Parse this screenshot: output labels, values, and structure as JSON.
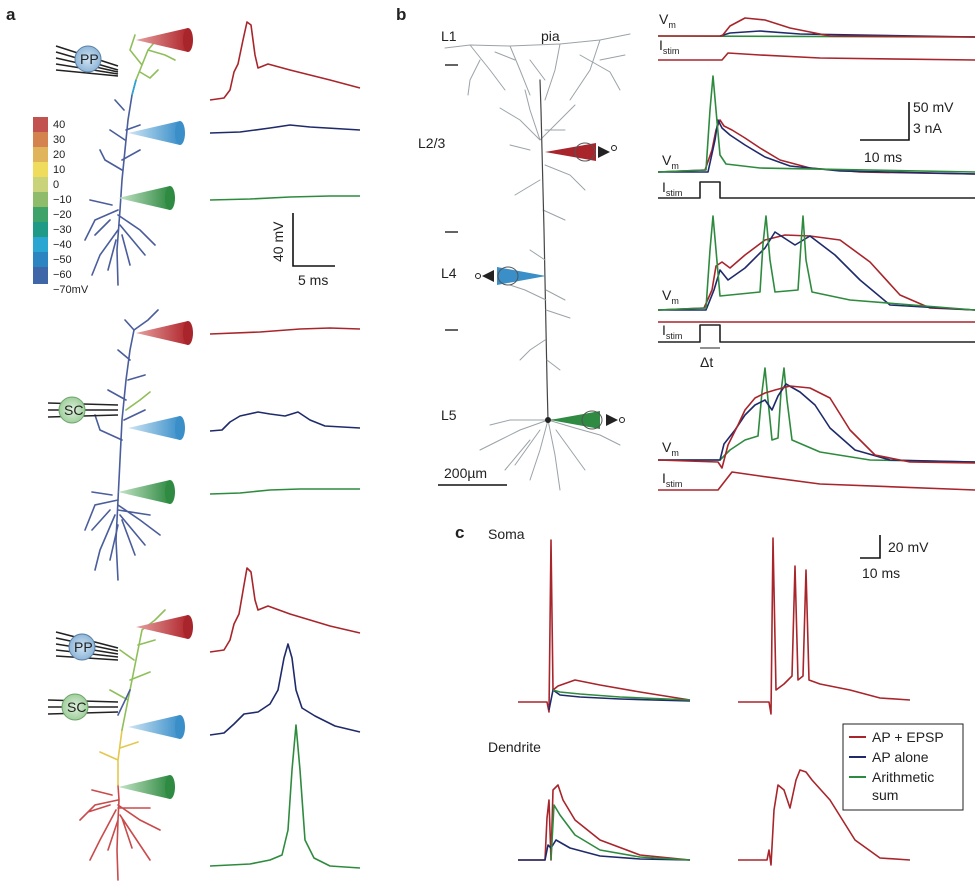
{
  "colors": {
    "red": "#a8252b",
    "blue": "#1f2a6b",
    "green": "#2e8b3e",
    "grey": "#444444"
  },
  "panel_a": {
    "label": "a",
    "inputs": {
      "pp": "PP",
      "sc": "SC"
    },
    "colorbar": [
      "40",
      "30",
      "20",
      "10",
      "0",
      "−10",
      "−20",
      "−30",
      "−40",
      "−50",
      "−60",
      "−70mV"
    ],
    "scale": {
      "v": "40 mV",
      "t": "5 ms"
    }
  },
  "panel_b": {
    "label": "b",
    "layers": {
      "l1": "L1",
      "pia": "pia",
      "l23": "L2/3",
      "l4": "L4",
      "l5": "L5"
    },
    "scalebar": "200µm",
    "vm": "V",
    "vm_sub": "m",
    "istim": "I",
    "istim_sub": "stim",
    "dt": "Δt",
    "scale": {
      "v": "50 mV",
      "i": "3 nA",
      "t": "10 ms"
    }
  },
  "panel_c": {
    "label": "c",
    "soma": "Soma",
    "dendrite": "Dendrite",
    "scale": {
      "v": "20 mV",
      "t": "10 ms"
    },
    "legend": [
      "AP + EPSP",
      "AP alone",
      "Arithmetic",
      "sum"
    ]
  }
}
